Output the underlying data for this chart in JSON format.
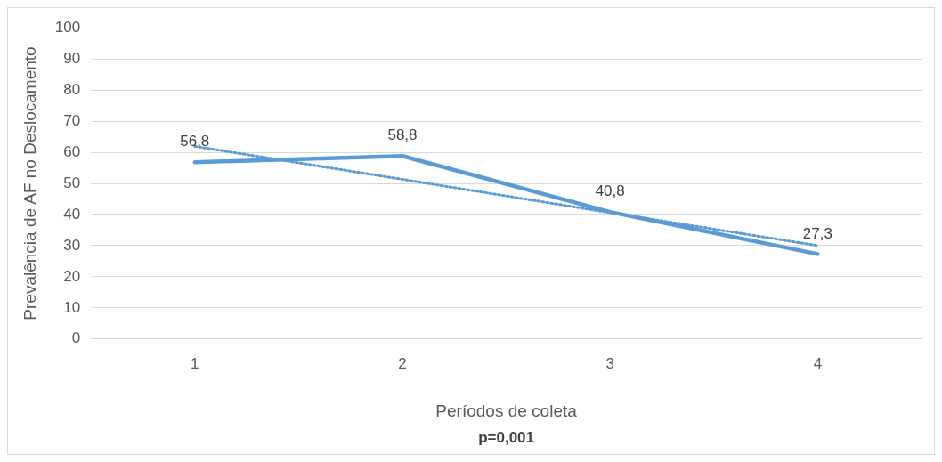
{
  "chart_data": {
    "type": "line",
    "categories": [
      "1",
      "2",
      "3",
      "4"
    ],
    "series": [
      {
        "color": "#5b9bd5",
        "values": [
          56.8,
          58.8,
          40.8,
          27.3
        ],
        "value_labels": [
          "56,8",
          "58,8",
          "40,8",
          "27,3"
        ],
        "line_style": "solid"
      },
      {
        "type": "line",
        "color": "#5b9bd5",
        "values": [
          61.9,
          51.3,
          40.6,
          30.0
        ],
        "line_style": "dotted"
      }
    ],
    "xlabel": "Períodos de coleta",
    "ylabel": "Prevalência de AF no Deslocamento",
    "annotations": [
      "p=0,001"
    ],
    "ylim": [
      0,
      100
    ],
    "yticks": [
      0,
      10,
      20,
      30,
      40,
      50,
      60,
      70,
      80,
      90,
      100
    ],
    "grid": "y",
    "legend": false,
    "marker": "none"
  }
}
